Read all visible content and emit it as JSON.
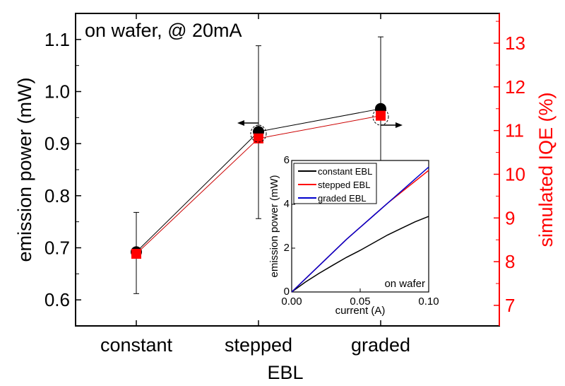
{
  "chart_data": [
    {
      "type": "scatter",
      "annotation": "on wafer, @ 20mA",
      "xlabel": "EBL",
      "categories": [
        "constant",
        "stepped",
        "graded"
      ],
      "ylabel_left": "emission power (mW)",
      "ylabel_right": "simulated  IQE (%)",
      "ylim_left": [
        0.55,
        1.15
      ],
      "yticks_left": [
        "0.6",
        "0.7",
        "0.8",
        "0.9",
        "1.0",
        "1.1"
      ],
      "ylim_right": [
        6.53,
        13.68
      ],
      "yticks_right": [
        "7",
        "8",
        "9",
        "10",
        "11",
        "12",
        "13"
      ],
      "right_axis_color": "#ff0000",
      "series": [
        {
          "marker": "circle",
          "color": "#000000",
          "axis": "left",
          "values": [
            0.692,
            0.923,
            0.967
          ],
          "error_low": [
            0.612,
            0.756,
            0.827
          ],
          "error_high": [
            0.768,
            1.088,
            1.105
          ]
        },
        {
          "marker": "square",
          "color": "#ff0000",
          "axis": "right",
          "values": [
            8.18,
            10.82,
            11.34
          ]
        }
      ]
    },
    {
      "type": "line",
      "annotation": "on wafer",
      "xlabel": "current (A)",
      "ylabel": "emission power (mW)",
      "xlim": [
        0,
        0.1
      ],
      "ylim": [
        0,
        6
      ],
      "xticks": [
        "0.00",
        "0.05",
        "0.10"
      ],
      "yticks": [
        "0",
        "2",
        "4",
        "6"
      ],
      "legend": "top-left",
      "series": [
        {
          "name": "constant EBL",
          "color": "#000000",
          "x": [
            0,
            0.01,
            0.02,
            0.03,
            0.04,
            0.05,
            0.06,
            0.07,
            0.08,
            0.09,
            0.1
          ],
          "y": [
            0,
            0.45,
            0.85,
            1.22,
            1.58,
            1.9,
            2.25,
            2.6,
            2.9,
            3.2,
            3.45
          ]
        },
        {
          "name": "stepped EBL",
          "color": "#ff0000",
          "x": [
            0,
            0.01,
            0.02,
            0.03,
            0.04,
            0.05,
            0.06,
            0.07,
            0.08,
            0.09,
            0.1
          ],
          "y": [
            0,
            0.6,
            1.2,
            1.8,
            2.4,
            2.95,
            3.5,
            4.05,
            4.55,
            5.05,
            5.55
          ]
        },
        {
          "name": "graded EBL",
          "color": "#0000cc",
          "x": [
            0,
            0.01,
            0.02,
            0.03,
            0.04,
            0.05,
            0.06,
            0.07,
            0.08,
            0.09,
            0.1
          ],
          "y": [
            0,
            0.6,
            1.2,
            1.8,
            2.4,
            2.95,
            3.5,
            4.05,
            4.6,
            5.15,
            5.7
          ]
        }
      ]
    }
  ]
}
